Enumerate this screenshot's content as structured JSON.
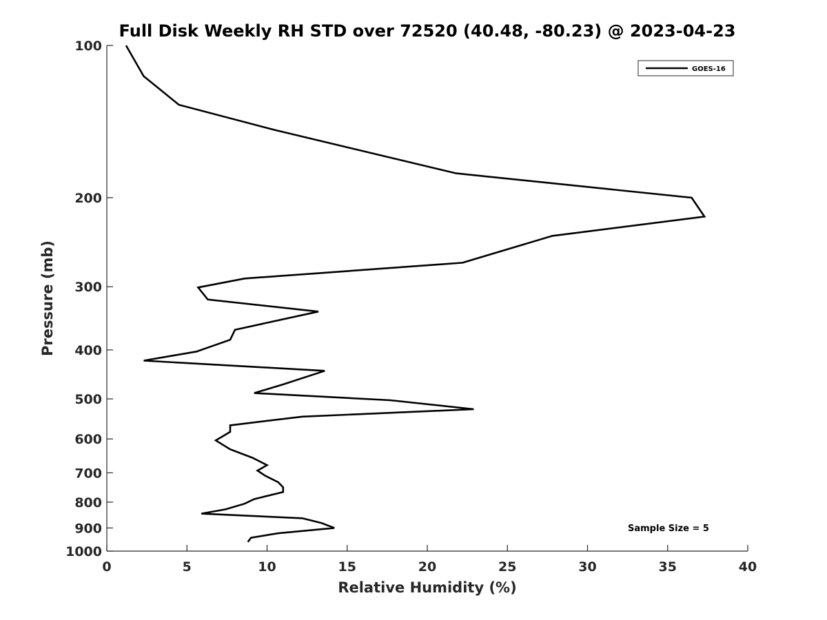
{
  "chart_data": {
    "type": "line",
    "title": "Full Disk Weekly RH STD over 72520 (40.48, -80.23) @ 2023-04-23",
    "xlabel": "Relative Humidity (%)",
    "ylabel": "Pressure (mb)",
    "xlim": [
      0,
      40
    ],
    "ylim": [
      100,
      1000
    ],
    "y_scale": "log",
    "y_reversed": true,
    "x_ticks": [
      "0",
      "5",
      "10",
      "15",
      "20",
      "25",
      "30",
      "35",
      "40"
    ],
    "y_ticks": [
      "100",
      "200",
      "300",
      "400",
      "500",
      "600",
      "700",
      "800",
      "900",
      "1000"
    ],
    "legend_position": "top-right",
    "grid": false,
    "annotation": "Sample Size = 5",
    "series": [
      {
        "name": "GOES-16",
        "color": "#000000",
        "x": [
          1.2,
          2.3,
          4.5,
          10.5,
          21.8,
          36.5,
          37.3,
          27.8,
          22.2,
          8.6,
          5.7,
          6.3,
          13.2,
          8.0,
          7.7,
          5.6,
          2.3,
          13.6,
          11.0,
          9.2,
          17.7,
          22.9,
          12.2,
          7.7,
          7.7,
          6.8,
          7.7,
          9.1,
          10.0,
          9.4,
          9.9,
          10.7,
          11.0,
          11.0,
          9.2,
          8.6,
          7.4,
          5.9,
          12.2,
          13.4,
          14.2,
          10.7,
          9.0,
          8.8
        ],
        "y": [
          100,
          115,
          131,
          147,
          179,
          200,
          218,
          238,
          269,
          289,
          301,
          318,
          336,
          365,
          382,
          403,
          420,
          440,
          468,
          487,
          503,
          524,
          542,
          564,
          581,
          604,
          629,
          654,
          676,
          693,
          710,
          731,
          748,
          764,
          789,
          806,
          827,
          843,
          861,
          880,
          900,
          922,
          941,
          959
        ]
      }
    ]
  }
}
